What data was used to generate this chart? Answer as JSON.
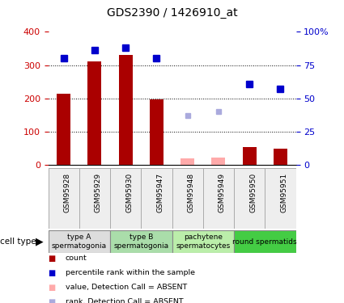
{
  "title": "GDS2390 / 1426910_at",
  "samples": [
    "GSM95928",
    "GSM95929",
    "GSM95930",
    "GSM95947",
    "GSM95948",
    "GSM95949",
    "GSM95950",
    "GSM95951"
  ],
  "count_values": [
    215,
    310,
    330,
    197,
    null,
    null,
    55,
    50
  ],
  "count_absent": [
    null,
    null,
    null,
    null,
    20,
    22,
    null,
    null
  ],
  "rank_values": [
    80,
    86,
    88,
    80,
    null,
    null,
    61,
    57
  ],
  "rank_absent": [
    null,
    null,
    null,
    null,
    37,
    40,
    null,
    null
  ],
  "bar_color": "#aa0000",
  "bar_absent_color": "#ffaaaa",
  "rank_color": "#0000cc",
  "rank_absent_color": "#aaaadd",
  "ylim_left": [
    0,
    400
  ],
  "ylim_right": [
    0,
    100
  ],
  "yticks_left": [
    0,
    100,
    200,
    300,
    400
  ],
  "yticks_right": [
    0,
    25,
    50,
    75,
    100
  ],
  "yticklabels_right": [
    "0",
    "25",
    "50",
    "75",
    "100%"
  ],
  "cell_type_groups": [
    {
      "label": "type A\nspermatogonia",
      "samples": [
        0,
        1
      ],
      "color": "#dddddd"
    },
    {
      "label": "type B\nspermatogonia",
      "samples": [
        2,
        3
      ],
      "color": "#aaddaa"
    },
    {
      "label": "pachytene\nspermatocytes",
      "samples": [
        4,
        5
      ],
      "color": "#bbeeaa"
    },
    {
      "label": "round spermatids",
      "samples": [
        6,
        7
      ],
      "color": "#44cc44"
    }
  ],
  "legend_items": [
    {
      "label": "count",
      "color": "#aa0000"
    },
    {
      "label": "percentile rank within the sample",
      "color": "#0000cc"
    },
    {
      "label": "value, Detection Call = ABSENT",
      "color": "#ffaaaa"
    },
    {
      "label": "rank, Detection Call = ABSENT",
      "color": "#aaaadd"
    }
  ],
  "left_tick_color": "#cc0000",
  "right_tick_color": "#0000cc",
  "grid_yticks": [
    100,
    200,
    300
  ]
}
